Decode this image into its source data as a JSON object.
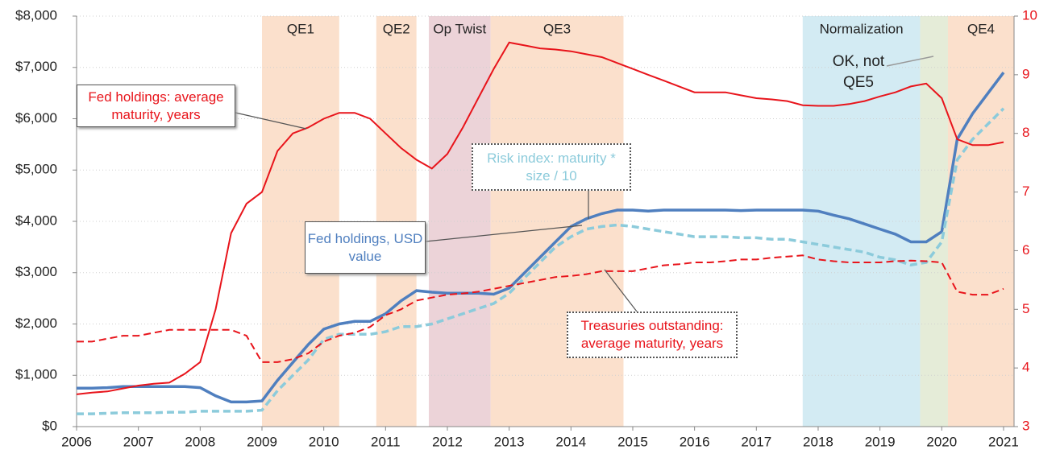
{
  "chart_data": {
    "type": "line",
    "x": [
      2006,
      2006.25,
      2006.5,
      2006.75,
      2007,
      2007.25,
      2007.5,
      2007.75,
      2008,
      2008.25,
      2008.5,
      2008.75,
      2009,
      2009.25,
      2009.5,
      2009.75,
      2010,
      2010.25,
      2010.5,
      2010.75,
      2011,
      2011.25,
      2011.5,
      2011.75,
      2012,
      2012.25,
      2012.5,
      2012.75,
      2013,
      2013.25,
      2013.5,
      2013.75,
      2014,
      2014.25,
      2014.5,
      2014.75,
      2015,
      2015.25,
      2015.5,
      2015.75,
      2016,
      2016.25,
      2016.5,
      2016.75,
      2017,
      2017.25,
      2017.5,
      2017.75,
      2018,
      2018.25,
      2018.5,
      2018.75,
      2019,
      2019.25,
      2019.5,
      2019.75,
      2020,
      2020.25,
      2020.5,
      2020.75,
      2021
    ],
    "series": [
      {
        "name": "Fed holdings, USD value",
        "color": "#4f7fbf",
        "dash": false,
        "axis": "y",
        "values": [
          750,
          750,
          760,
          780,
          780,
          780,
          780,
          780,
          760,
          600,
          480,
          480,
          500,
          900,
          1250,
          1600,
          1900,
          2000,
          2050,
          2050,
          2200,
          2450,
          2650,
          2620,
          2600,
          2600,
          2600,
          2580,
          2700,
          3000,
          3300,
          3600,
          3900,
          4050,
          4150,
          4220,
          4220,
          4200,
          4220,
          4220,
          4220,
          4220,
          4220,
          4210,
          4220,
          4220,
          4220,
          4220,
          4200,
          4120,
          4050,
          3950,
          3850,
          3750,
          3600,
          3600,
          3800,
          5600,
          6100,
          6500,
          6900
        ]
      },
      {
        "name": "Risk index:  maturity * size / 10",
        "color": "#8ccbdb",
        "dash": true,
        "axis": "y",
        "values": [
          250,
          250,
          260,
          270,
          270,
          270,
          280,
          280,
          300,
          300,
          300,
          300,
          320,
          700,
          1000,
          1300,
          1700,
          1800,
          1800,
          1800,
          1850,
          1950,
          1950,
          2000,
          2100,
          2200,
          2300,
          2400,
          2600,
          2900,
          3200,
          3500,
          3700,
          3850,
          3900,
          3930,
          3900,
          3850,
          3800,
          3750,
          3700,
          3700,
          3700,
          3680,
          3680,
          3650,
          3650,
          3600,
          3550,
          3500,
          3450,
          3400,
          3300,
          3250,
          3150,
          3200,
          3600,
          5200,
          5600,
          5900,
          6200
        ]
      },
      {
        "name": "Fed holdings: average maturity, years",
        "color": "#e8141b",
        "dash": false,
        "axis": "y2",
        "values": [
          3.55,
          3.58,
          3.6,
          3.65,
          3.7,
          3.73,
          3.75,
          3.9,
          4.1,
          5.0,
          6.3,
          6.8,
          7.0,
          7.7,
          8.0,
          8.1,
          8.25,
          8.35,
          8.35,
          8.25,
          8.0,
          7.75,
          7.55,
          7.4,
          7.65,
          8.1,
          8.6,
          9.1,
          9.55,
          9.5,
          9.45,
          9.43,
          9.4,
          9.35,
          9.3,
          9.2,
          9.1,
          9.0,
          8.9,
          8.8,
          8.7,
          8.7,
          8.7,
          8.65,
          8.6,
          8.58,
          8.55,
          8.48,
          8.47,
          8.47,
          8.5,
          8.55,
          8.63,
          8.7,
          8.8,
          8.85,
          8.6,
          7.9,
          7.8,
          7.8,
          7.85
        ]
      },
      {
        "name": "Treasuries outstanding: average maturity, years",
        "color": "#e8141b",
        "dash": true,
        "axis": "y2",
        "values": [
          4.45,
          4.45,
          4.5,
          4.55,
          4.55,
          4.6,
          4.65,
          4.65,
          4.65,
          4.65,
          4.65,
          4.55,
          4.1,
          4.1,
          4.15,
          4.25,
          4.45,
          4.55,
          4.6,
          4.7,
          4.9,
          5.0,
          5.15,
          5.2,
          5.25,
          5.27,
          5.3,
          5.35,
          5.4,
          5.45,
          5.5,
          5.55,
          5.57,
          5.6,
          5.65,
          5.65,
          5.65,
          5.7,
          5.75,
          5.77,
          5.8,
          5.8,
          5.82,
          5.85,
          5.85,
          5.88,
          5.9,
          5.92,
          5.85,
          5.82,
          5.8,
          5.8,
          5.8,
          5.82,
          5.83,
          5.82,
          5.8,
          5.3,
          5.25,
          5.25,
          5.35
        ]
      }
    ],
    "xlim": [
      2006,
      2021.17
    ],
    "xticks": [
      2006,
      2007,
      2008,
      2009,
      2010,
      2011,
      2012,
      2013,
      2014,
      2015,
      2016,
      2017,
      2018,
      2019,
      2020,
      2021
    ],
    "ylim": [
      0,
      8000
    ],
    "yticks": [
      {
        "value": 0,
        "label": "$0"
      },
      {
        "value": 1000,
        "label": "$1,000"
      },
      {
        "value": 2000,
        "label": "$2,000"
      },
      {
        "value": 3000,
        "label": "$3,000"
      },
      {
        "value": 4000,
        "label": "$4,000"
      },
      {
        "value": 5000,
        "label": "$5,000"
      },
      {
        "value": 6000,
        "label": "$6,000"
      },
      {
        "value": 7000,
        "label": "$7,000"
      },
      {
        "value": 8000,
        "label": "$8,000"
      }
    ],
    "y2lim": [
      3,
      10
    ],
    "y2ticks": [
      3,
      4,
      5,
      6,
      7,
      8,
      9,
      10
    ],
    "y2color": "#e8141b",
    "grid": true,
    "regions": [
      {
        "label": "QE1",
        "start": 2009.0,
        "end": 2010.25,
        "color": "#fbe0cc"
      },
      {
        "label": "QE2",
        "start": 2010.85,
        "end": 2011.5,
        "color": "#fbe0cc"
      },
      {
        "label": "Op Twist",
        "start": 2011.7,
        "end": 2012.7,
        "color": "#ecd3d8"
      },
      {
        "label": "QE3",
        "start": 2012.7,
        "end": 2014.85,
        "color": "#fbe0cc"
      },
      {
        "label": "Normalization",
        "start": 2017.75,
        "end": 2019.65,
        "color": "#d3ebf3"
      },
      {
        "start": 2019.65,
        "end": 2020.1,
        "color": "#e5ecd8"
      },
      {
        "label": "QE4",
        "start": 2020.1,
        "end": 2021.17,
        "color": "#fbe0cc"
      }
    ],
    "annotations": [
      "OK, not QE5"
    ]
  }
}
